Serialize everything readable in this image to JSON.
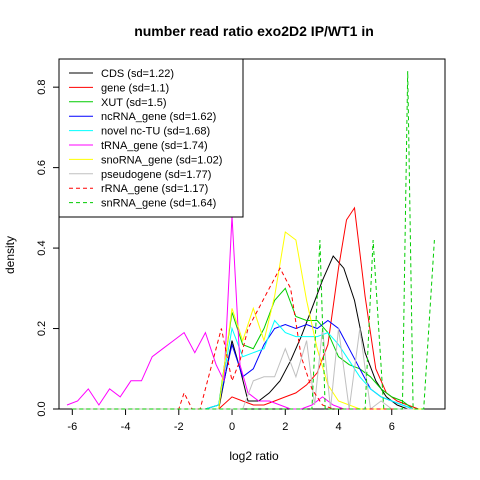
{
  "chart_data": {
    "type": "line",
    "title": "number read ratio exo2D2 IP/WT1 in",
    "xlabel": "log2 ratio",
    "ylabel": "density",
    "xlim": [
      -6.5,
      8.0
    ],
    "ylim": [
      0,
      0.87
    ],
    "xticks": [
      -6,
      -4,
      -2,
      0,
      2,
      4,
      6
    ],
    "yticks": [
      0.0,
      0.2,
      0.4,
      0.6,
      0.8
    ],
    "xtick_labels": [
      "-6",
      "-4",
      "-2",
      "0",
      "2",
      "4",
      "6"
    ],
    "ytick_labels": [
      "0.0",
      "0.2",
      "0.4",
      "0.6",
      "0.8"
    ],
    "legend_position": "top-left",
    "series": [
      {
        "name": "CDS (sd=1.22)",
        "color": "#000000",
        "dash": "solid",
        "x": [
          -6,
          -5.5,
          -5,
          -4.5,
          -4,
          -3.5,
          -3,
          -2.5,
          -2,
          -1.5,
          -1,
          -0.5,
          0,
          0.3,
          0.6,
          1,
          1.4,
          1.8,
          2.2,
          2.6,
          3,
          3.4,
          3.8,
          4.2,
          4.6,
          5,
          5.4,
          5.8,
          6.2,
          6.6,
          7
        ],
        "y": [
          0,
          0,
          0,
          0,
          0,
          0,
          0,
          0,
          0,
          0,
          0,
          0,
          0.17,
          0.1,
          0.02,
          0.02,
          0.04,
          0.07,
          0.12,
          0.18,
          0.25,
          0.32,
          0.38,
          0.35,
          0.27,
          0.14,
          0.07,
          0.03,
          0.01,
          0,
          0
        ]
      },
      {
        "name": "gene (sd=1.1)",
        "color": "#ff0000",
        "dash": "solid",
        "x": [
          -6,
          -5.5,
          -5,
          -4.5,
          -4,
          -3.5,
          -3,
          -2.5,
          -2,
          -1.5,
          -1,
          -0.5,
          0,
          0.4,
          0.8,
          1.2,
          1.6,
          2,
          2.4,
          2.8,
          3.2,
          3.6,
          4,
          4.3,
          4.6,
          5,
          5.4,
          5.8,
          6.2,
          6.6,
          7
        ],
        "y": [
          0,
          0,
          0,
          0,
          0,
          0,
          0,
          0,
          0,
          0,
          0,
          0,
          0.03,
          0.02,
          0.01,
          0.01,
          0.02,
          0.03,
          0.04,
          0.06,
          0.09,
          0.16,
          0.35,
          0.47,
          0.5,
          0.28,
          0.1,
          0.04,
          0.02,
          0.01,
          0
        ]
      },
      {
        "name": "XUT (sd=1.5)",
        "color": "#00cc00",
        "dash": "solid",
        "x": [
          -6,
          -5.5,
          -5,
          -4.5,
          -4,
          -3.5,
          -3,
          -2.5,
          -2,
          -1.5,
          -1,
          -0.5,
          0,
          0.4,
          0.8,
          1.2,
          1.6,
          2,
          2.4,
          2.8,
          3.2,
          3.6,
          4,
          4.4,
          4.8,
          5.2,
          5.6,
          6,
          6.4,
          6.8,
          7.2
        ],
        "y": [
          0,
          0,
          0,
          0,
          0,
          0,
          0,
          0,
          0,
          0,
          0,
          0.01,
          0.24,
          0.16,
          0.15,
          0.2,
          0.27,
          0.3,
          0.23,
          0.22,
          0.22,
          0.19,
          0.13,
          0.11,
          0.1,
          0.08,
          0.05,
          0.03,
          0.02,
          0,
          0
        ]
      },
      {
        "name": "ncRNA_gene (sd=1.62)",
        "color": "#0000ff",
        "dash": "solid",
        "x": [
          -6,
          -5.5,
          -5,
          -4.5,
          -4,
          -3.5,
          -3,
          -2.5,
          -2,
          -1.5,
          -1,
          -0.5,
          0,
          0.4,
          0.8,
          1.2,
          1.6,
          2,
          2.4,
          2.8,
          3.2,
          3.6,
          4,
          4.4,
          4.8,
          5.2,
          5.6,
          6,
          6.4,
          6.8,
          7.2
        ],
        "y": [
          0,
          0,
          0,
          0,
          0,
          0,
          0,
          0,
          0,
          0,
          0,
          0.01,
          0.16,
          0.08,
          0.1,
          0.16,
          0.2,
          0.21,
          0.2,
          0.21,
          0.2,
          0.22,
          0.2,
          0.15,
          0.1,
          0.05,
          0.03,
          0.02,
          0.01,
          0,
          0
        ]
      },
      {
        "name": "novel nc-TU (sd=1.68)",
        "color": "#00ffff",
        "dash": "solid",
        "x": [
          -6,
          -5.5,
          -5,
          -4.5,
          -4,
          -3.5,
          -3,
          -2.5,
          -2,
          -1.5,
          -1,
          -0.5,
          0,
          0.4,
          0.8,
          1.2,
          1.6,
          2,
          2.4,
          2.8,
          3.2,
          3.6,
          4,
          4.4,
          4.8,
          5.2,
          5.6,
          6,
          6.4,
          6.8,
          7.2
        ],
        "y": [
          0,
          0,
          0,
          0,
          0,
          0,
          0,
          0,
          0,
          0,
          0,
          0.01,
          0.2,
          0.13,
          0.14,
          0.15,
          0.22,
          0.19,
          0.18,
          0.18,
          0.18,
          0.19,
          0.16,
          0.12,
          0.08,
          0.05,
          0.03,
          0.02,
          0.01,
          0,
          0
        ]
      },
      {
        "name": "tRNA_gene (sd=1.74)",
        "color": "#ff00ff",
        "dash": "solid",
        "x": [
          -6.2,
          -5.8,
          -5.4,
          -5,
          -4.6,
          -4.2,
          -3.8,
          -3.4,
          -3,
          -2.6,
          -2.2,
          -1.8,
          -1.4,
          -1,
          -0.6,
          -0.3,
          0,
          0.3,
          0.6,
          1,
          1.4,
          1.8,
          2.2,
          2.6,
          3,
          3.4,
          3.8,
          4.2,
          4.6,
          5,
          5.4
        ],
        "y": [
          0.01,
          0.02,
          0.05,
          0.01,
          0.05,
          0.03,
          0.07,
          0.07,
          0.13,
          0.15,
          0.17,
          0.19,
          0.14,
          0.19,
          0.11,
          0.07,
          0.48,
          0.11,
          0.04,
          0.02,
          0.02,
          0.01,
          0,
          0,
          0.01,
          0.03,
          0.01,
          0,
          0,
          0,
          0
        ]
      },
      {
        "name": "snoRNA_gene (sd=1.02)",
        "color": "#ffff00",
        "dash": "solid",
        "x": [
          -6,
          -5.5,
          -5,
          -4.5,
          -4,
          -3.5,
          -3,
          -2.5,
          -2,
          -1.5,
          -1,
          -0.5,
          0,
          0.4,
          0.8,
          1.2,
          1.6,
          2,
          2.4,
          2.8,
          3.2,
          3.6,
          4,
          4.4,
          4.8,
          5.2,
          5.6,
          6,
          6.4,
          6.8,
          7.2
        ],
        "y": [
          0,
          0,
          0,
          0,
          0,
          0,
          0,
          0,
          0,
          0,
          0,
          0,
          0.25,
          0.17,
          0.25,
          0.17,
          0.28,
          0.44,
          0.42,
          0.27,
          0.15,
          0.06,
          0.02,
          0.01,
          0,
          0,
          0,
          0,
          0,
          0,
          0
        ]
      },
      {
        "name": "pseudogene (sd=1.77)",
        "color": "#c0c0c0",
        "dash": "solid",
        "x": [
          -6,
          -5.5,
          -5,
          -4.5,
          -4,
          -3.5,
          -3,
          -2.5,
          -2,
          -1.5,
          -1,
          -0.5,
          0,
          0.4,
          0.8,
          1.2,
          1.6,
          2,
          2.4,
          2.8,
          3.1,
          3.4,
          3.7,
          4,
          4.4,
          4.8,
          5.2,
          5.6,
          6,
          6.4,
          6.8
        ],
        "y": [
          0,
          0,
          0,
          0,
          0,
          0,
          0,
          0,
          0,
          0,
          0,
          0,
          0,
          0,
          0.07,
          0.08,
          0.08,
          0.15,
          0.08,
          0.17,
          0.01,
          0.2,
          0,
          0.2,
          0,
          0.2,
          0,
          0.02,
          0,
          0,
          0
        ]
      },
      {
        "name": "rRNA_gene (sd=1.17)",
        "color": "#ff0000",
        "dash": "dashed",
        "x": [
          -6,
          -5.5,
          -5,
          -4.5,
          -4,
          -3.5,
          -3,
          -2.5,
          -2,
          -1.8,
          -1.5,
          -1.2,
          -0.8,
          -0.4,
          0,
          0.3,
          0.6,
          1,
          1.4,
          1.8,
          2.2,
          2.6,
          3,
          3.4,
          3.8,
          4.2,
          4.6,
          5,
          5.4,
          5.8,
          6.2
        ],
        "y": [
          0,
          0,
          0,
          0,
          0,
          0,
          0,
          0,
          0,
          0.04,
          0,
          0,
          0.1,
          0.2,
          0.07,
          0.12,
          0.2,
          0.25,
          0.3,
          0.35,
          0.3,
          0.13,
          0.05,
          0.01,
          0,
          0,
          0,
          0,
          0,
          0,
          0
        ]
      },
      {
        "name": "snRNA_gene (sd=1.64)",
        "color": "#00cc00",
        "dash": "dashed",
        "x": [
          -6,
          -5,
          -4,
          -3,
          -2,
          -1,
          0,
          1,
          2,
          2.5,
          3,
          3.3,
          3.5,
          3.8,
          4.2,
          4.6,
          5,
          5.3,
          5.7,
          6.2,
          6.4,
          6.6,
          6.8,
          7.2,
          7.6
        ],
        "y": [
          0,
          0,
          0,
          0,
          0,
          0,
          0,
          0,
          0,
          0,
          0,
          0.42,
          0,
          0,
          0,
          0,
          0,
          0.42,
          0,
          0,
          0,
          0.84,
          0,
          0,
          0.42
        ]
      }
    ]
  }
}
